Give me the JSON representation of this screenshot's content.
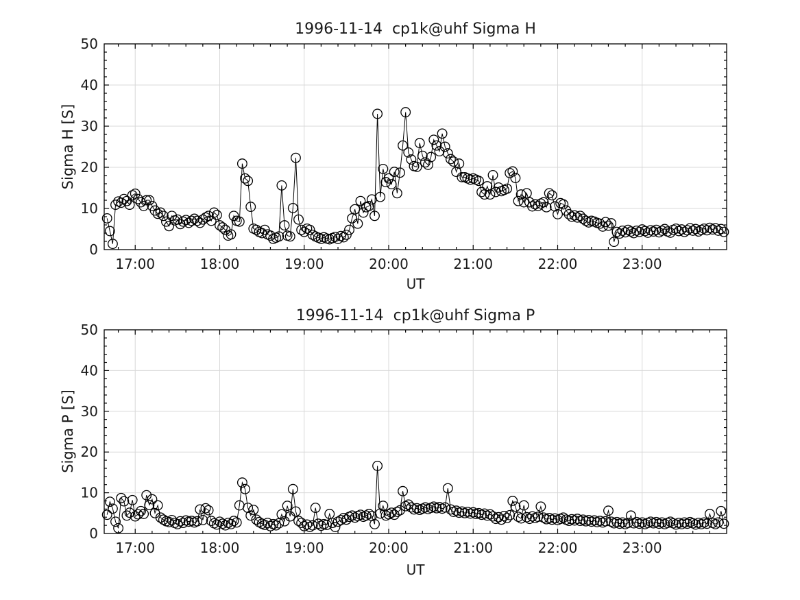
{
  "figure": {
    "background": "#ffffff",
    "axis_color": "#000000",
    "grid_color": "#d8d8d8",
    "data_color": "#000000",
    "label_color": "#1a1a1a"
  },
  "chart_data": [
    {
      "type": "line",
      "title": "1996-11-14  cp1k@uhf Sigma H",
      "xlabel": "UT",
      "ylabel": "Sigma H [S]",
      "xlim": [
        16.633,
        24.0
      ],
      "ylim": [
        0,
        50
      ],
      "xticks": [
        17,
        18,
        19,
        20,
        21,
        22,
        23
      ],
      "xtick_labels": [
        "17:00",
        "18:00",
        "19:00",
        "20:00",
        "21:00",
        "22:00",
        "23:00"
      ],
      "yticks": [
        0,
        10,
        20,
        30,
        40,
        50
      ],
      "ytick_labels": [
        "0",
        "10",
        "20",
        "30",
        "40",
        "50"
      ],
      "x_minor_step": 0.2,
      "y_minor_step": 2,
      "grid": true,
      "legend": null,
      "marker": "open-circle",
      "line_style": "solid",
      "x_start_hours": 16.667,
      "x_step_hours": 0.033333,
      "values": [
        7.6,
        4.5,
        1.4,
        10.9,
        11.7,
        11.4,
        12.3,
        11.8,
        10.9,
        13.2,
        13.6,
        12.3,
        11.5,
        10.6,
        12.0,
        12.0,
        10.6,
        9.5,
        8.7,
        9.0,
        8.2,
        6.8,
        5.7,
        8.2,
        7.1,
        7.3,
        6.2,
        6.8,
        7.2,
        6.5,
        7.0,
        7.5,
        7.0,
        6.5,
        7.3,
        7.8,
        8.2,
        7.0,
        9.0,
        8.4,
        5.9,
        5.4,
        4.8,
        3.4,
        3.7,
        8.2,
        7.0,
        6.8,
        20.9,
        17.3,
        16.7,
        10.4,
        5.1,
        4.8,
        4.3,
        4.0,
        4.8,
        3.7,
        3.4,
        2.6,
        2.9,
        3.2,
        15.6,
        5.9,
        3.4,
        3.2,
        10.1,
        22.3,
        7.3,
        4.8,
        4.3,
        5.1,
        4.8,
        3.6,
        3.2,
        2.9,
        2.6,
        3.0,
        2.7,
        2.5,
        2.8,
        3.1,
        2.6,
        3.3,
        3.0,
        3.6,
        4.8,
        7.6,
        9.8,
        6.3,
        11.8,
        9.0,
        10.3,
        10.6,
        12.2,
        8.2,
        33.0,
        12.8,
        19.6,
        16.4,
        17.3,
        15.9,
        18.9,
        13.7,
        18.7,
        25.3,
        33.4,
        23.6,
        21.9,
        20.3,
        20.1,
        25.9,
        22.8,
        21.2,
        20.6,
        22.5,
        26.7,
        25.3,
        23.9,
        28.2,
        25.0,
        23.4,
        22.0,
        21.4,
        18.9,
        20.9,
        17.6,
        17.6,
        17.3,
        17.0,
        17.3,
        17.0,
        16.7,
        14.0,
        13.4,
        15.4,
        13.4,
        18.1,
        14.0,
        15.1,
        14.2,
        14.5,
        14.8,
        18.6,
        19.0,
        17.4,
        11.8,
        13.4,
        11.5,
        13.7,
        11.5,
        10.5,
        11.0,
        10.6,
        11.2,
        11.5,
        10.3,
        13.7,
        13.2,
        10.5,
        8.6,
        11.3,
        11.0,
        9.5,
        8.6,
        8.0,
        8.3,
        7.8,
        8.2,
        7.5,
        7.0,
        6.6,
        7.0,
        6.8,
        6.5,
        6.3,
        5.6,
        6.7,
        5.8,
        6.4,
        1.9,
        4.3,
        3.9,
        4.6,
        4.2,
        4.8,
        4.4,
        4.0,
        4.6,
        4.3,
        4.9,
        4.5,
        4.1,
        4.7,
        4.4,
        4.8,
        4.2,
        4.6,
        5.0,
        4.4,
        4.1,
        4.8,
        5.1,
        4.5,
        4.9,
        4.3,
        4.7,
        5.2,
        4.6,
        5.0,
        4.4,
        4.8,
        5.1,
        4.7,
        5.3,
        4.9,
        5.2,
        4.6,
        5.0,
        4.3
      ]
    },
    {
      "type": "line",
      "title": "1996-11-14  cp1k@uhf Sigma P",
      "xlabel": "UT",
      "ylabel": "Sigma P [S]",
      "xlim": [
        16.633,
        24.0
      ],
      "ylim": [
        0,
        50
      ],
      "xticks": [
        17,
        18,
        19,
        20,
        21,
        22,
        23
      ],
      "xtick_labels": [
        "17:00",
        "18:00",
        "19:00",
        "20:00",
        "21:00",
        "22:00",
        "23:00"
      ],
      "yticks": [
        0,
        10,
        20,
        30,
        40,
        50
      ],
      "ytick_labels": [
        "0",
        "10",
        "20",
        "30",
        "40",
        "50"
      ],
      "x_minor_step": 0.2,
      "y_minor_step": 2,
      "grid": true,
      "legend": null,
      "marker": "open-circle",
      "line_style": "solid",
      "x_start_hours": 16.667,
      "x_step_hours": 0.033333,
      "values": [
        4.6,
        7.8,
        6.1,
        2.9,
        1.3,
        8.7,
        7.9,
        4.4,
        5.1,
        8.2,
        4.2,
        4.7,
        5.5,
        4.8,
        9.4,
        7.0,
        8.4,
        5.0,
        6.9,
        3.9,
        3.4,
        3.0,
        2.8,
        3.3,
        2.6,
        2.3,
        3.0,
        2.6,
        3.2,
        2.9,
        3.1,
        2.7,
        3.0,
        5.9,
        3.3,
        6.2,
        5.7,
        3.1,
        2.5,
        2.2,
        2.9,
        2.4,
        2.0,
        2.6,
        2.3,
        3.1,
        2.7,
        6.9,
        12.5,
        10.9,
        6.3,
        4.4,
        5.8,
        3.4,
        2.8,
        2.4,
        2.1,
        2.6,
        1.8,
        2.3,
        2.0,
        2.5,
        4.7,
        3.0,
        6.8,
        4.2,
        10.9,
        5.4,
        3.1,
        2.6,
        1.8,
        2.2,
        1.6,
        2.0,
        6.3,
        2.4,
        1.9,
        2.3,
        2.1,
        4.8,
        2.6,
        1.6,
        2.9,
        3.3,
        3.8,
        3.4,
        4.1,
        4.4,
        3.9,
        4.3,
        4.6,
        4.1,
        4.4,
        4.8,
        4.3,
        2.3,
        16.6,
        4.9,
        6.8,
        4.4,
        4.7,
        5.1,
        4.6,
        5.3,
        5.7,
        10.4,
        6.7,
        7.1,
        6.4,
        5.9,
        6.2,
        5.8,
        6.1,
        6.4,
        6.0,
        6.3,
        6.6,
        6.2,
        6.5,
        6.1,
        6.4,
        11.1,
        5.9,
        5.3,
        5.6,
        5.1,
        5.4,
        5.0,
        5.3,
        4.9,
        5.2,
        4.8,
        5.0,
        4.6,
        4.9,
        4.4,
        4.7,
        4.2,
        3.6,
        4.0,
        3.4,
        4.3,
        3.8,
        4.5,
        8.0,
        6.6,
        4.1,
        3.7,
        6.9,
        4.0,
        3.6,
        4.2,
        3.8,
        4.1,
        6.6,
        3.9,
        3.5,
        3.8,
        3.4,
        3.7,
        3.3,
        3.6,
        3.9,
        3.4,
        3.1,
        3.5,
        3.2,
        3.6,
        3.1,
        3.4,
        3.0,
        3.3,
        2.9,
        3.2,
        2.8,
        3.1,
        2.7,
        3.0,
        5.6,
        2.9,
        2.5,
        2.8,
        2.4,
        2.7,
        2.3,
        2.6,
        4.4,
        2.5,
        2.8,
        2.4,
        2.7,
        2.3,
        2.6,
        2.9,
        2.5,
        2.8,
        2.4,
        2.7,
        2.3,
        2.6,
        2.9,
        2.5,
        2.2,
        2.6,
        2.3,
        2.7,
        2.4,
        2.8,
        2.5,
        2.2,
        2.6,
        2.3,
        2.7,
        2.4,
        4.8,
        2.6,
        2.3,
        2.7,
        5.5,
        2.4
      ]
    }
  ]
}
